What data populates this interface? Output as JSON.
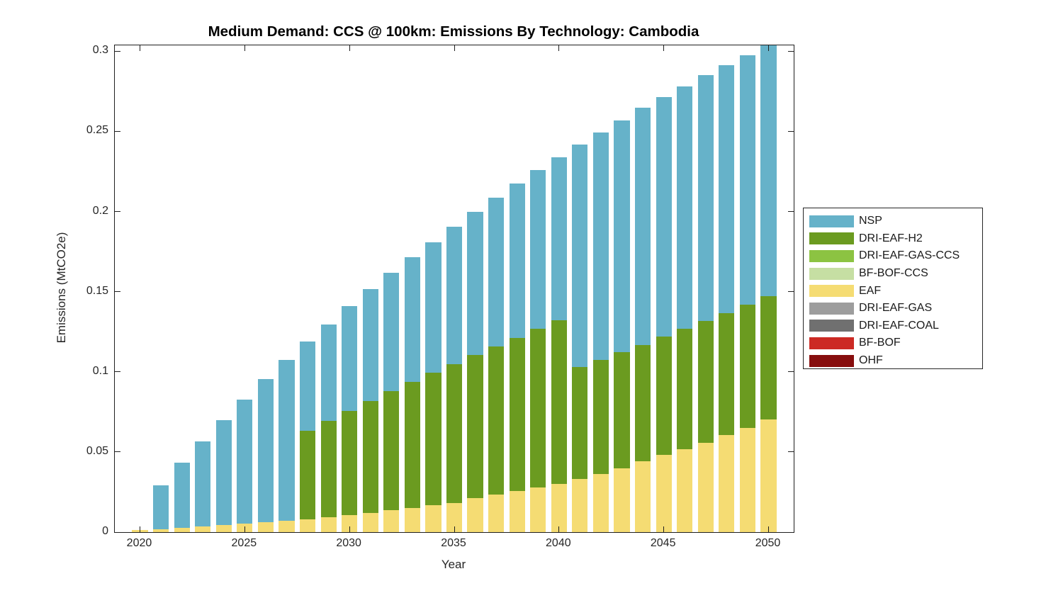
{
  "title": "Medium Demand: CCS @ 100km: Emissions By Technology: Cambodia",
  "axes": {
    "x_label": "Year",
    "y_label": "Emissions (MtCO2e)",
    "x_ticks": [
      "2020",
      "2025",
      "2030",
      "2035",
      "2040",
      "2045",
      "2050"
    ],
    "y_ticks": [
      "0",
      "0.05",
      "0.1",
      "0.15",
      "0.2",
      "0.25",
      "0.3"
    ]
  },
  "legend": {
    "entries": [
      {
        "label": "NSP",
        "color": "#66B2C9"
      },
      {
        "label": "DRI-EAF-H2",
        "color": "#6B9B20"
      },
      {
        "label": "DRI-EAF-GAS-CCS",
        "color": "#8CC342"
      },
      {
        "label": "BF-BOF-CCS",
        "color": "#C6DFA3"
      },
      {
        "label": "EAF",
        "color": "#F5DC73"
      },
      {
        "label": "DRI-EAF-GAS",
        "color": "#9D9D9D"
      },
      {
        "label": "DRI-EAF-COAL",
        "color": "#707070"
      },
      {
        "label": "BF-BOF",
        "color": "#CC2A24"
      },
      {
        "label": "OHF",
        "color": "#870E0E"
      }
    ]
  },
  "chart_data": {
    "type": "bar",
    "stacked": true,
    "title": "Medium Demand: CCS @ 100km: Emissions By Technology: Cambodia",
    "xlabel": "Year",
    "ylabel": "Emissions (MtCO2e)",
    "xlim": [
      2018.8,
      2051.2
    ],
    "ylim": [
      0,
      0.3037
    ],
    "grid": false,
    "legend_position": "right-outside",
    "bar_rel_width": 0.75,
    "x": [
      2020,
      2021,
      2022,
      2023,
      2024,
      2025,
      2026,
      2027,
      2028,
      2029,
      2030,
      2031,
      2032,
      2033,
      2034,
      2035,
      2036,
      2037,
      2038,
      2039,
      2040,
      2041,
      2042,
      2043,
      2044,
      2045,
      2046,
      2047,
      2048,
      2049,
      2050
    ],
    "stack_order_note": "stacked bottom-to-top in reverse order of the series list (OHF at bottom, NSP on top)",
    "series": [
      {
        "name": "NSP",
        "color": "#66B2C9",
        "values": [
          0,
          0.0274,
          0.0407,
          0.0532,
          0.0657,
          0.0776,
          0.0894,
          0.1002,
          0.0554,
          0.0605,
          0.0652,
          0.0696,
          0.0737,
          0.078,
          0.0816,
          0.0859,
          0.0897,
          0.0929,
          0.0962,
          0.0991,
          0.1018,
          0.1389,
          0.142,
          0.1449,
          0.1483,
          0.1498,
          0.1512,
          0.1534,
          0.1544,
          0.1558,
          0.1561
        ]
      },
      {
        "name": "DRI-EAF-H2",
        "color": "#6B9B20",
        "values": [
          0,
          0,
          0,
          0,
          0,
          0,
          0,
          0,
          0.0552,
          0.0598,
          0.065,
          0.0698,
          0.0745,
          0.0786,
          0.0828,
          0.0866,
          0.0892,
          0.0922,
          0.0957,
          0.0991,
          0.102,
          0.0698,
          0.0712,
          0.0721,
          0.0724,
          0.0738,
          0.0753,
          0.0761,
          0.0763,
          0.0767,
          0.0773
        ]
      },
      {
        "name": "DRI-EAF-GAS-CCS",
        "color": "#8CC342",
        "values": [
          0,
          0,
          0,
          0,
          0,
          0,
          0,
          0,
          0,
          0,
          0,
          0,
          0,
          0,
          0,
          0,
          0,
          0,
          0,
          0,
          0,
          0,
          0,
          0,
          0,
          0,
          0,
          0,
          0,
          0,
          0
        ]
      },
      {
        "name": "BF-BOF-CCS",
        "color": "#C6DFA3",
        "values": [
          0,
          0,
          0,
          0,
          0,
          0,
          0,
          0,
          0,
          0,
          0,
          0,
          0,
          0,
          0,
          0,
          0,
          0,
          0,
          0,
          0,
          0,
          0,
          0,
          0,
          0,
          0,
          0,
          0,
          0,
          0
        ]
      },
      {
        "name": "EAF",
        "color": "#F5DC73",
        "values": [
          0.0012,
          0.0016,
          0.0025,
          0.0034,
          0.0042,
          0.0052,
          0.0061,
          0.0071,
          0.0081,
          0.0094,
          0.0108,
          0.0121,
          0.0136,
          0.0151,
          0.0166,
          0.0182,
          0.0211,
          0.0236,
          0.0255,
          0.0277,
          0.0302,
          0.0331,
          0.0362,
          0.04,
          0.0443,
          0.048,
          0.0517,
          0.0557,
          0.0605,
          0.0652,
          0.0701
        ]
      },
      {
        "name": "DRI-EAF-GAS",
        "color": "#9D9D9D",
        "values": [
          0,
          0,
          0,
          0,
          0,
          0,
          0,
          0,
          0,
          0,
          0,
          0,
          0,
          0,
          0,
          0,
          0,
          0,
          0,
          0,
          0,
          0,
          0,
          0,
          0,
          0,
          0,
          0,
          0,
          0,
          0
        ]
      },
      {
        "name": "DRI-EAF-COAL",
        "color": "#707070",
        "values": [
          0,
          0,
          0,
          0,
          0,
          0,
          0,
          0,
          0,
          0,
          0,
          0,
          0,
          0,
          0,
          0,
          0,
          0,
          0,
          0,
          0,
          0,
          0,
          0,
          0,
          0,
          0,
          0,
          0,
          0,
          0
        ]
      },
      {
        "name": "BF-BOF",
        "color": "#CC2A24",
        "values": [
          0,
          0,
          0,
          0,
          0,
          0,
          0,
          0,
          0,
          0,
          0,
          0,
          0,
          0,
          0,
          0,
          0,
          0,
          0,
          0,
          0,
          0,
          0,
          0,
          0,
          0,
          0,
          0,
          0,
          0,
          0
        ]
      },
      {
        "name": "OHF",
        "color": "#870E0E",
        "values": [
          0,
          0,
          0,
          0,
          0,
          0,
          0,
          0,
          0,
          0,
          0,
          0,
          0,
          0,
          0,
          0,
          0,
          0,
          0,
          0,
          0,
          0,
          0,
          0,
          0,
          0,
          0,
          0,
          0,
          0,
          0
        ]
      }
    ]
  }
}
